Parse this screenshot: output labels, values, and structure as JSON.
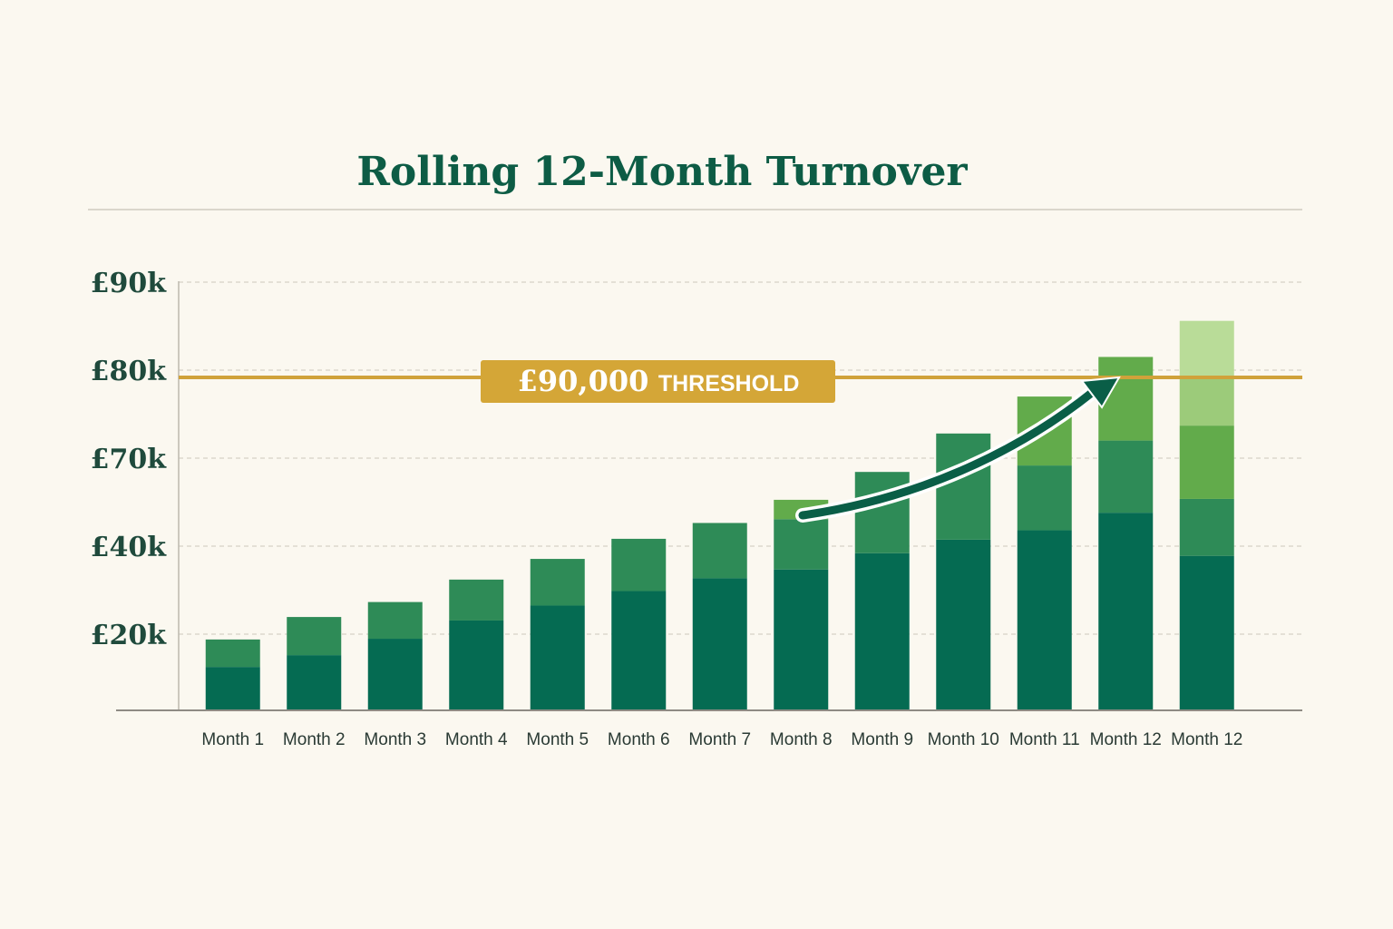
{
  "chart_data": {
    "type": "stacked-bar",
    "title": "Rolling 12-Month Turnover",
    "categories": [
      "Month 1",
      "Month 2",
      "Month 3",
      "Month 4",
      "Month 5",
      "Month 6",
      "Month 7",
      "Month 8",
      "Month 9",
      "Month 10",
      "Month 11",
      "Month 12",
      "Month 12"
    ],
    "series": [
      {
        "color": "#056b52",
        "values": [
          11400,
          14500,
          18800,
          23100,
          26500,
          29800,
          32700,
          34700,
          38400,
          42200,
          45400,
          51400,
          37800
        ]
      },
      {
        "color": "#2e8b57",
        "values": [
          7200,
          9400,
          8500,
          9300,
          10600,
          12700,
          15200,
          14500,
          26900,
          30600,
          22100,
          20600,
          18300
        ]
      },
      {
        "color": "#62ab4b",
        "values": [
          null,
          null,
          null,
          null,
          null,
          null,
          null,
          6600,
          null,
          null,
          9500,
          9500,
          17600
        ]
      },
      {
        "color": "#9ccb7a",
        "values": [
          null,
          null,
          null,
          null,
          null,
          null,
          null,
          null,
          null,
          null,
          null,
          null,
          5600
        ]
      },
      {
        "color": "#b9dc98",
        "values": [
          null,
          null,
          null,
          null,
          null,
          null,
          null,
          null,
          null,
          null,
          null,
          null,
          6300
        ]
      }
    ],
    "ylim": [
      0,
      90000
    ],
    "yticks": [
      {
        "value": 20000,
        "label": "£20k"
      },
      {
        "value": 40000,
        "label": "£40k"
      },
      {
        "value": 70000,
        "label": "£70k"
      },
      {
        "value": 80000,
        "label": "£80k"
      },
      {
        "value": 90000,
        "label": "£90k"
      }
    ],
    "grid": true,
    "threshold_label": "£90,000",
    "threshold_text": "THRESHOLD"
  }
}
